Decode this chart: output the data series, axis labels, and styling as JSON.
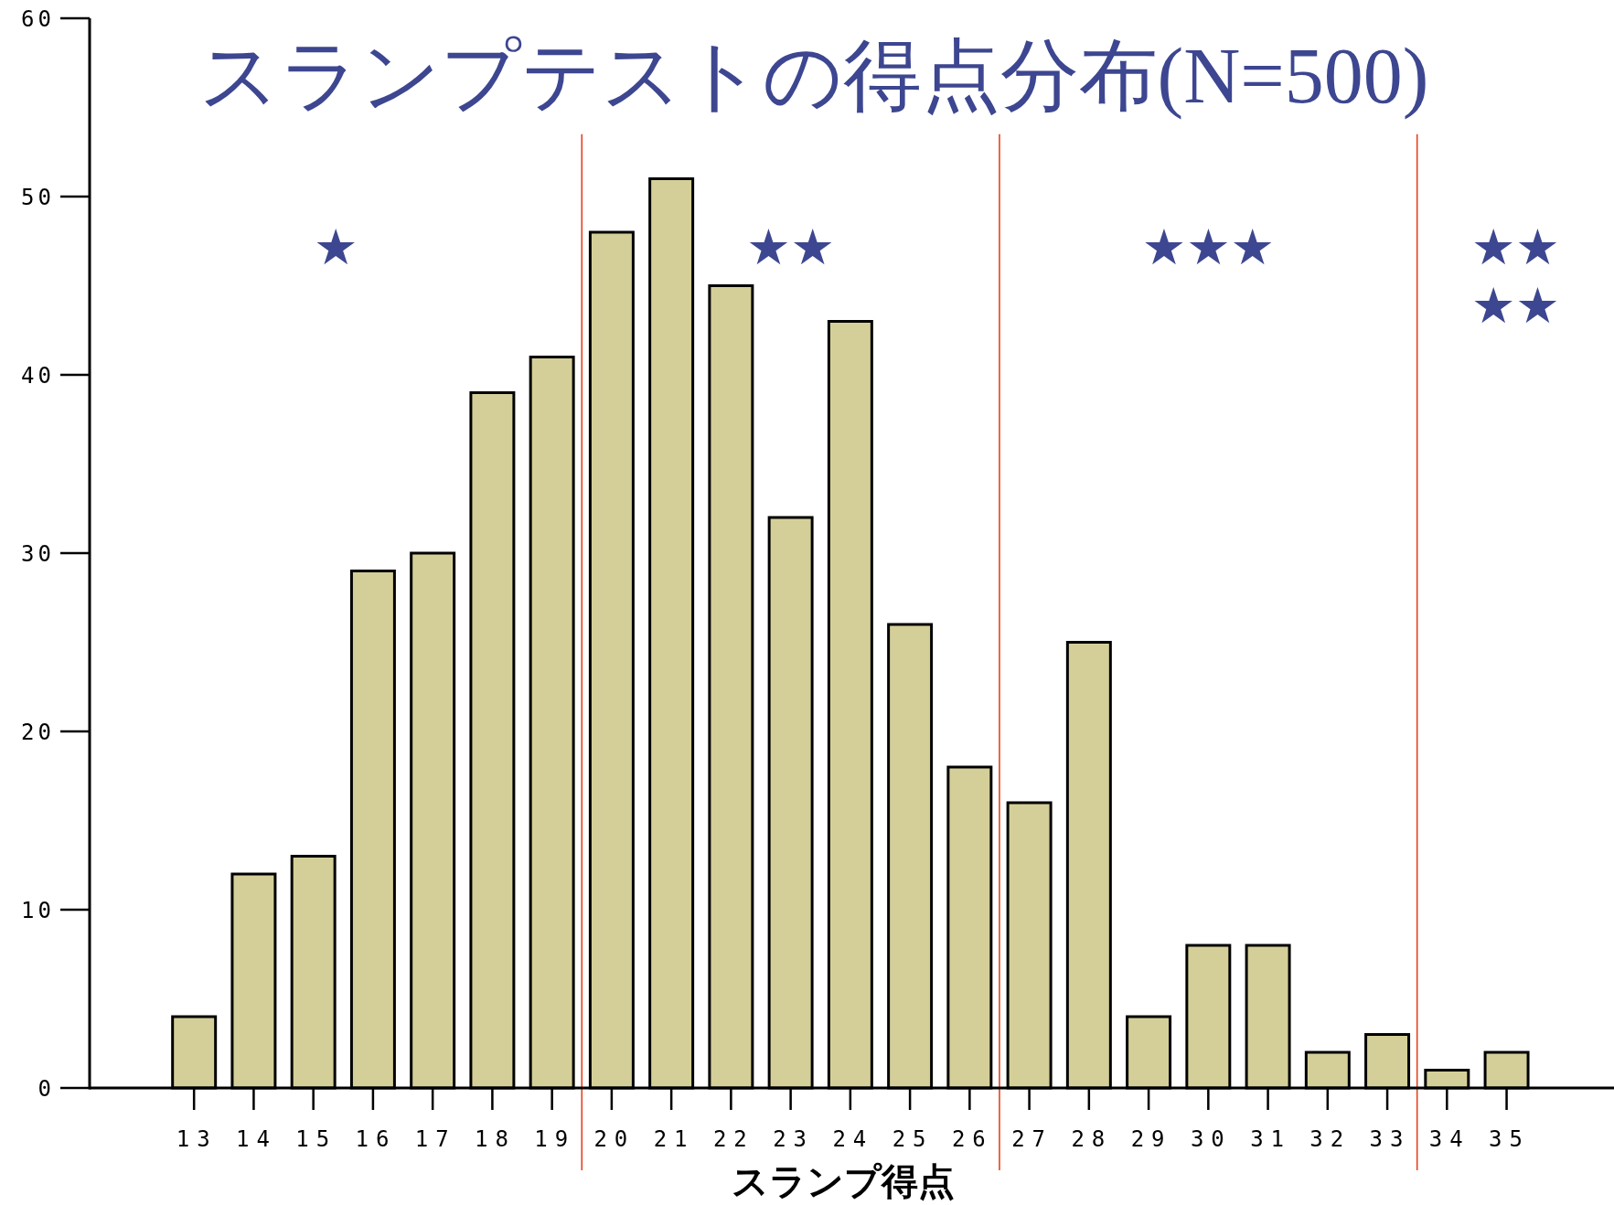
{
  "chart_data": {
    "type": "bar",
    "title": "スランプテストの得点分布(N=500)",
    "xlabel": "スランプ得点",
    "x": [
      13,
      14,
      15,
      16,
      17,
      18,
      19,
      20,
      21,
      22,
      23,
      24,
      25,
      26,
      27,
      28,
      29,
      30,
      31,
      32,
      33,
      34,
      35
    ],
    "xticks": [
      13,
      14,
      15,
      16,
      17,
      18,
      19,
      20,
      21,
      22,
      23,
      24,
      25,
      26,
      27,
      28,
      29,
      30,
      31,
      32,
      33,
      34,
      35
    ],
    "xlim": [
      11.25,
      36.8
    ],
    "values": [
      4,
      12,
      13,
      29,
      30,
      39,
      41,
      48,
      51,
      45,
      32,
      43,
      26,
      18,
      16,
      25,
      4,
      8,
      8,
      2,
      3,
      1,
      2
    ],
    "color": "#d4cf98",
    "ylim": [
      0,
      60
    ],
    "yticks": [
      0,
      10,
      20,
      30,
      40,
      50,
      60
    ],
    "grid": false,
    "ref_lines": [
      {
        "axis": "x",
        "value": 19.5,
        "color": "#e8401c"
      },
      {
        "axis": "x",
        "value": 26.5,
        "color": "#e8401c"
      },
      {
        "axis": "x",
        "value": 33.5,
        "color": "#e8401c"
      }
    ],
    "annotations": [
      "★",
      "★★",
      "★★★",
      "★★\n★★"
    ]
  }
}
